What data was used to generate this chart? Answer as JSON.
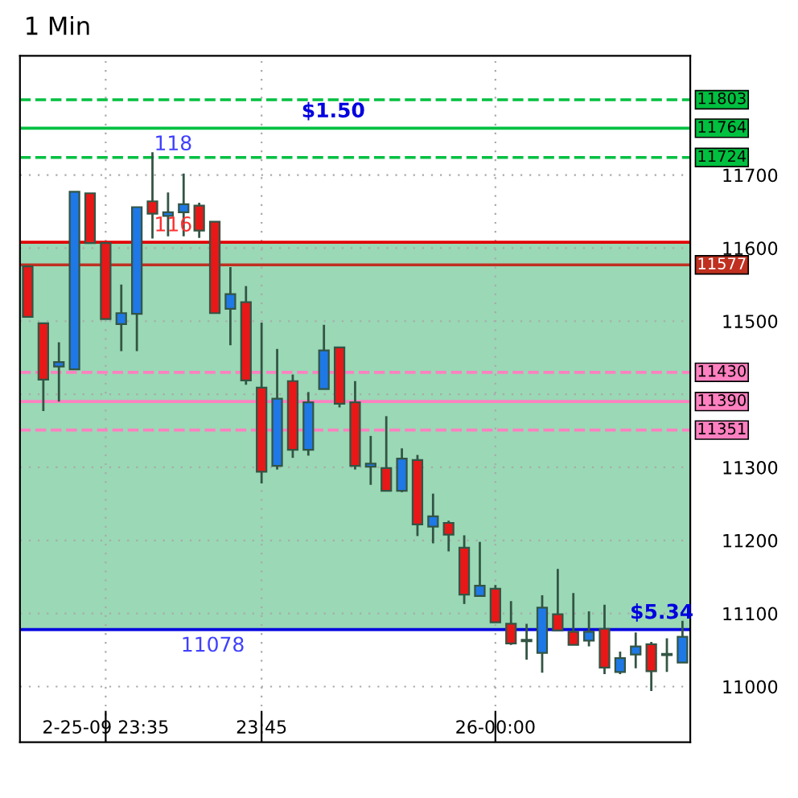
{
  "chart_data": {
    "type": "candlestick",
    "title": "1 Min",
    "categories": [
      null,
      null,
      null,
      null,
      null,
      "2-25-09 23:35",
      null,
      null,
      null,
      null,
      null,
      null,
      null,
      null,
      null,
      "23:45",
      null,
      null,
      null,
      null,
      null,
      null,
      null,
      null,
      null,
      null,
      null,
      null,
      null,
      null,
      "26-00:00",
      null,
      null,
      null,
      null,
      null,
      null,
      null,
      null,
      null,
      null,
      null,
      null
    ],
    "ohlc": [
      [
        11575,
        11575,
        11506,
        11506
      ],
      [
        11497,
        11497,
        11377,
        11420
      ],
      [
        11438,
        11471,
        11390,
        11444
      ],
      [
        11434,
        11677,
        11434,
        11677
      ],
      [
        11675,
        11675,
        11607,
        11607
      ],
      [
        11607,
        11607,
        11503,
        11503
      ],
      [
        11496,
        11550,
        11459,
        11511
      ],
      [
        11510,
        11656,
        11459,
        11656
      ],
      [
        11664,
        11731,
        11613,
        11647
      ],
      [
        11644,
        11676,
        11616,
        11649
      ],
      [
        11649,
        11702,
        11616,
        11660
      ],
      [
        11658,
        11662,
        11614,
        11624
      ],
      [
        11636,
        11636,
        11511,
        11511
      ],
      [
        11517,
        11574,
        11467,
        11537
      ],
      [
        11526,
        11548,
        11413,
        11419
      ],
      [
        11409,
        11498,
        11278,
        11294
      ],
      [
        11302,
        11462,
        11297,
        11394
      ],
      [
        11418,
        11427,
        11313,
        11324
      ],
      [
        11324,
        11403,
        11316,
        11389
      ],
      [
        11407,
        11495,
        11407,
        11460
      ],
      [
        11464,
        11464,
        11382,
        11387
      ],
      [
        11389,
        11418,
        11297,
        11302
      ],
      [
        11301,
        11343,
        11276,
        11305
      ],
      [
        11299,
        11370,
        11268,
        11268
      ],
      [
        11268,
        11326,
        11266,
        11312
      ],
      [
        11310,
        11317,
        11206,
        11222
      ],
      [
        11219,
        11264,
        11196,
        11233
      ],
      [
        11224,
        11227,
        11185,
        11208
      ],
      [
        11190,
        11207,
        11113,
        11126
      ],
      [
        11124,
        11198,
        11124,
        11138
      ],
      [
        11134,
        11139,
        11088,
        11088
      ],
      [
        11086,
        11117,
        11057,
        11059
      ],
      [
        11062,
        11086,
        11037,
        11062
      ],
      [
        11046,
        11125,
        11019,
        11108
      ],
      [
        11099,
        11161,
        11077,
        11077
      ],
      [
        11075,
        11128,
        11057,
        11057
      ],
      [
        11063,
        11103,
        11055,
        11075
      ],
      [
        11079,
        11112,
        11017,
        11026
      ],
      [
        11020,
        11048,
        11017,
        11039
      ],
      [
        11044,
        11074,
        11025,
        11055
      ],
      [
        11058,
        11061,
        10994,
        11021
      ],
      [
        11043,
        11066,
        11020,
        11043
      ],
      [
        11033,
        11090,
        11033,
        11068
      ]
    ],
    "ylim": [
      10924,
      11863
    ],
    "yticks": [
      11000,
      11100,
      11200,
      11300,
      {
        "value": 11400,
        "label": null
      },
      11500,
      11600,
      11700
    ],
    "grid": true,
    "bands": [
      {
        "axis": "y",
        "from": 11078,
        "to": 11608,
        "color": "#9ad8b6"
      }
    ],
    "ref_lines": [
      {
        "axis": "y",
        "value": 11803,
        "label": "11803",
        "color": "#00c040",
        "line_style": "dashed"
      },
      {
        "axis": "y",
        "value": 11764,
        "label": "11764",
        "color": "#00c040",
        "line_style": "solid"
      },
      {
        "axis": "y",
        "value": 11724,
        "label": "11724",
        "color": "#00c040",
        "line_style": "dashed"
      },
      {
        "axis": "y",
        "value": 11608,
        "color": "#e00000",
        "line_style": "solid"
      },
      {
        "axis": "y",
        "value": 11577,
        "label": "11577",
        "color": "#c03020",
        "line_style": "solid"
      },
      {
        "axis": "y",
        "value": 11430,
        "label": "11430",
        "color": "#ff80c0",
        "line_style": "dashed"
      },
      {
        "axis": "y",
        "value": 11390,
        "label": "11390",
        "color": "#ff80c0",
        "line_style": "solid"
      },
      {
        "axis": "y",
        "value": 11351,
        "label": "11351",
        "color": "#ff80c0",
        "line_style": "dashed"
      },
      {
        "axis": "y",
        "value": 11078,
        "color": "#0000e0",
        "line_style": "solid"
      }
    ],
    "annotations": [
      {
        "text": "$1.50",
        "y": 11764
      },
      {
        "text": "118",
        "y": 11764
      },
      {
        "text": "116",
        "y": 11608
      },
      {
        "text": "11078",
        "y": 11078
      },
      {
        "text": "$5.34",
        "y": 11078
      }
    ]
  }
}
